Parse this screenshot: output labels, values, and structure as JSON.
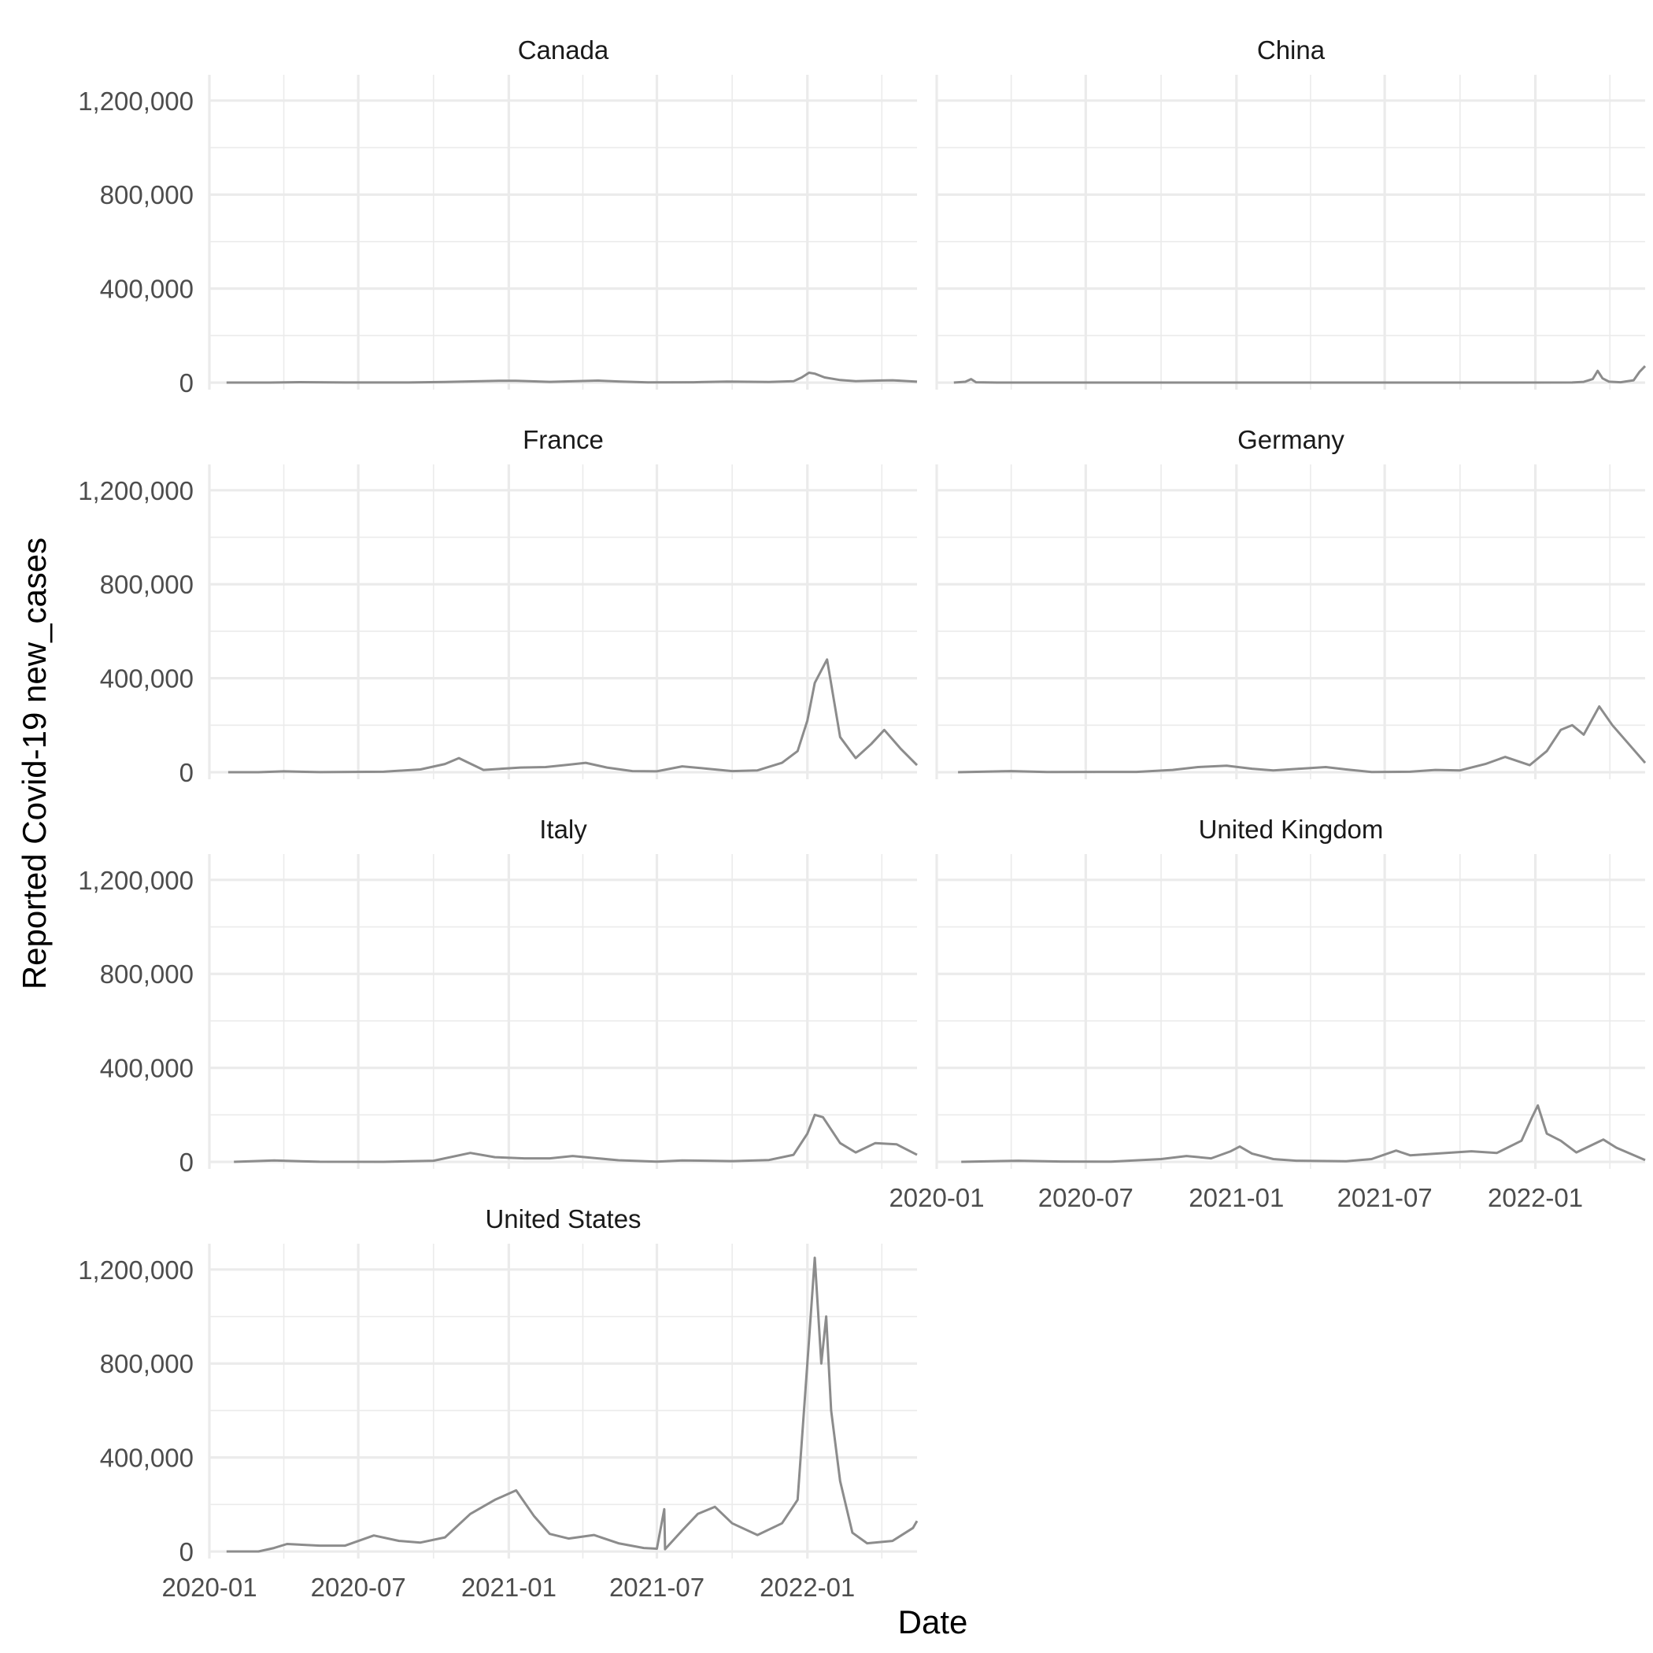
{
  "chart_data": {
    "type": "line",
    "layout": "facet_wrap",
    "ncol": 2,
    "xlabel": "Date",
    "ylabel": "Reported Covid-19 new_cases",
    "x_range": [
      "2020-01-01",
      "2022-05-15"
    ],
    "x_ticks": [
      "2020-01",
      "2020-07",
      "2021-01",
      "2021-07",
      "2022-01"
    ],
    "ylim": [
      -30000,
      1310000
    ],
    "y_ticks": [
      0,
      400000,
      800000,
      1200000
    ],
    "y_tick_labels": [
      "0",
      "400,000",
      "800,000",
      "1,200,000"
    ],
    "line_color": "#8c8c8c",
    "grid": true,
    "panels": [
      {
        "name": "Canada",
        "points": [
          [
            "2020-01-22",
            0
          ],
          [
            "2020-03-15",
            300
          ],
          [
            "2020-04-20",
            1800
          ],
          [
            "2020-06-15",
            500
          ],
          [
            "2020-09-01",
            400
          ],
          [
            "2020-10-15",
            2500
          ],
          [
            "2020-12-20",
            7500
          ],
          [
            "2021-01-10",
            8000
          ],
          [
            "2021-02-20",
            3000
          ],
          [
            "2021-04-20",
            8500
          ],
          [
            "2021-05-15",
            5000
          ],
          [
            "2021-06-20",
            800
          ],
          [
            "2021-08-15",
            1500
          ],
          [
            "2021-09-25",
            4500
          ],
          [
            "2021-11-15",
            2500
          ],
          [
            "2021-12-15",
            6000
          ],
          [
            "2021-12-25",
            22000
          ],
          [
            "2022-01-03",
            42000
          ],
          [
            "2022-01-10",
            38000
          ],
          [
            "2022-01-22",
            22000
          ],
          [
            "2022-02-10",
            11000
          ],
          [
            "2022-03-01",
            6000
          ],
          [
            "2022-04-01",
            9000
          ],
          [
            "2022-04-15",
            10000
          ],
          [
            "2022-05-15",
            4000
          ]
        ]
      },
      {
        "name": "China",
        "points": [
          [
            "2020-01-22",
            0
          ],
          [
            "2020-02-05",
            3500
          ],
          [
            "2020-02-12",
            15000
          ],
          [
            "2020-02-18",
            1500
          ],
          [
            "2020-03-15",
            200
          ],
          [
            "2020-12-01",
            100
          ],
          [
            "2021-12-01",
            200
          ],
          [
            "2022-02-15",
            500
          ],
          [
            "2022-03-01",
            3000
          ],
          [
            "2022-03-12",
            15000
          ],
          [
            "2022-03-18",
            50000
          ],
          [
            "2022-03-24",
            18000
          ],
          [
            "2022-04-01",
            4000
          ],
          [
            "2022-04-15",
            1500
          ],
          [
            "2022-05-01",
            10000
          ],
          [
            "2022-05-08",
            45000
          ],
          [
            "2022-05-15",
            70000
          ]
        ]
      },
      {
        "name": "France",
        "points": [
          [
            "2020-01-24",
            0
          ],
          [
            "2020-03-01",
            300
          ],
          [
            "2020-04-01",
            4000
          ],
          [
            "2020-05-15",
            500
          ],
          [
            "2020-08-01",
            2000
          ],
          [
            "2020-09-15",
            12000
          ],
          [
            "2020-10-15",
            35000
          ],
          [
            "2020-11-01",
            60000
          ],
          [
            "2020-11-10",
            45000
          ],
          [
            "2020-12-01",
            10000
          ],
          [
            "2021-01-15",
            20000
          ],
          [
            "2021-02-15",
            22000
          ],
          [
            "2021-03-15",
            32000
          ],
          [
            "2021-04-05",
            40000
          ],
          [
            "2021-05-01",
            20000
          ],
          [
            "2021-06-01",
            5000
          ],
          [
            "2021-07-01",
            4000
          ],
          [
            "2021-08-01",
            25000
          ],
          [
            "2021-09-01",
            15000
          ],
          [
            "2021-10-01",
            5000
          ],
          [
            "2021-11-01",
            8000
          ],
          [
            "2021-12-01",
            40000
          ],
          [
            "2021-12-20",
            90000
          ],
          [
            "2022-01-01",
            220000
          ],
          [
            "2022-01-10",
            380000
          ],
          [
            "2022-01-25",
            480000
          ],
          [
            "2022-02-10",
            150000
          ],
          [
            "2022-03-01",
            60000
          ],
          [
            "2022-03-20",
            120000
          ],
          [
            "2022-04-05",
            180000
          ],
          [
            "2022-04-25",
            100000
          ],
          [
            "2022-05-15",
            30000
          ]
        ]
      },
      {
        "name": "Germany",
        "points": [
          [
            "2020-01-27",
            0
          ],
          [
            "2020-04-01",
            5000
          ],
          [
            "2020-05-15",
            700
          ],
          [
            "2020-09-01",
            1500
          ],
          [
            "2020-10-15",
            10000
          ],
          [
            "2020-11-15",
            22000
          ],
          [
            "2020-12-20",
            28000
          ],
          [
            "2021-01-20",
            15000
          ],
          [
            "2021-02-15",
            8000
          ],
          [
            "2021-04-20",
            22000
          ],
          [
            "2021-05-15",
            12000
          ],
          [
            "2021-06-15",
            1000
          ],
          [
            "2021-08-01",
            2000
          ],
          [
            "2021-09-01",
            10000
          ],
          [
            "2021-10-01",
            8000
          ],
          [
            "2021-11-01",
            35000
          ],
          [
            "2021-11-25",
            65000
          ],
          [
            "2021-12-25",
            30000
          ],
          [
            "2022-01-15",
            90000
          ],
          [
            "2022-02-01",
            180000
          ],
          [
            "2022-02-15",
            200000
          ],
          [
            "2022-03-01",
            160000
          ],
          [
            "2022-03-20",
            280000
          ],
          [
            "2022-04-05",
            200000
          ],
          [
            "2022-04-25",
            120000
          ],
          [
            "2022-05-15",
            40000
          ]
        ]
      },
      {
        "name": "Italy",
        "points": [
          [
            "2020-01-31",
            0
          ],
          [
            "2020-03-20",
            6000
          ],
          [
            "2020-05-15",
            500
          ],
          [
            "2020-08-01",
            300
          ],
          [
            "2020-10-01",
            5000
          ],
          [
            "2020-11-15",
            38000
          ],
          [
            "2020-12-15",
            20000
          ],
          [
            "2021-01-20",
            15000
          ],
          [
            "2021-02-20",
            15000
          ],
          [
            "2021-03-20",
            25000
          ],
          [
            "2021-04-20",
            15000
          ],
          [
            "2021-05-15",
            7000
          ],
          [
            "2021-07-01",
            900
          ],
          [
            "2021-08-01",
            6000
          ],
          [
            "2021-09-01",
            5000
          ],
          [
            "2021-10-01",
            3000
          ],
          [
            "2021-11-15",
            8000
          ],
          [
            "2021-12-15",
            30000
          ],
          [
            "2022-01-01",
            120000
          ],
          [
            "2022-01-10",
            200000
          ],
          [
            "2022-01-20",
            190000
          ],
          [
            "2022-02-10",
            80000
          ],
          [
            "2022-03-01",
            40000
          ],
          [
            "2022-03-25",
            80000
          ],
          [
            "2022-04-20",
            75000
          ],
          [
            "2022-05-15",
            30000
          ]
        ]
      },
      {
        "name": "United Kingdom",
        "points": [
          [
            "2020-01-31",
            0
          ],
          [
            "2020-04-10",
            5000
          ],
          [
            "2020-06-01",
            1500
          ],
          [
            "2020-08-01",
            800
          ],
          [
            "2020-10-01",
            12000
          ],
          [
            "2020-11-01",
            25000
          ],
          [
            "2020-12-01",
            15000
          ],
          [
            "2020-12-25",
            45000
          ],
          [
            "2021-01-05",
            65000
          ],
          [
            "2021-01-20",
            35000
          ],
          [
            "2021-02-15",
            12000
          ],
          [
            "2021-03-15",
            5000
          ],
          [
            "2021-05-15",
            2500
          ],
          [
            "2021-06-15",
            12000
          ],
          [
            "2021-07-15",
            48000
          ],
          [
            "2021-08-01",
            28000
          ],
          [
            "2021-09-01",
            35000
          ],
          [
            "2021-10-15",
            45000
          ],
          [
            "2021-11-15",
            38000
          ],
          [
            "2021-12-15",
            90000
          ],
          [
            "2021-12-28",
            190000
          ],
          [
            "2022-01-04",
            240000
          ],
          [
            "2022-01-15",
            120000
          ],
          [
            "2022-02-01",
            90000
          ],
          [
            "2022-02-20",
            40000
          ],
          [
            "2022-03-25",
            95000
          ],
          [
            "2022-04-10",
            60000
          ],
          [
            "2022-05-15",
            8000
          ]
        ]
      },
      {
        "name": "United States",
        "points": [
          [
            "2020-01-22",
            0
          ],
          [
            "2020-03-01",
            100
          ],
          [
            "2020-03-20",
            15000
          ],
          [
            "2020-04-05",
            32000
          ],
          [
            "2020-05-15",
            25000
          ],
          [
            "2020-06-15",
            25000
          ],
          [
            "2020-07-20",
            68000
          ],
          [
            "2020-08-20",
            45000
          ],
          [
            "2020-09-15",
            38000
          ],
          [
            "2020-10-15",
            60000
          ],
          [
            "2020-11-15",
            160000
          ],
          [
            "2020-12-15",
            220000
          ],
          [
            "2021-01-10",
            260000
          ],
          [
            "2021-02-01",
            150000
          ],
          [
            "2021-02-20",
            75000
          ],
          [
            "2021-03-15",
            55000
          ],
          [
            "2021-04-15",
            70000
          ],
          [
            "2021-05-15",
            35000
          ],
          [
            "2021-06-15",
            15000
          ],
          [
            "2021-07-01",
            12000
          ],
          [
            "2021-07-10",
            180000
          ],
          [
            "2021-07-11",
            10000
          ],
          [
            "2021-08-01",
            90000
          ],
          [
            "2021-08-20",
            160000
          ],
          [
            "2021-09-10",
            190000
          ],
          [
            "2021-10-01",
            120000
          ],
          [
            "2021-11-01",
            70000
          ],
          [
            "2021-12-01",
            120000
          ],
          [
            "2021-12-20",
            220000
          ],
          [
            "2022-01-03",
            900000
          ],
          [
            "2022-01-10",
            1250000
          ],
          [
            "2022-01-18",
            800000
          ],
          [
            "2022-01-24",
            1000000
          ],
          [
            "2022-01-30",
            600000
          ],
          [
            "2022-02-10",
            300000
          ],
          [
            "2022-02-25",
            80000
          ],
          [
            "2022-03-15",
            35000
          ],
          [
            "2022-04-15",
            45000
          ],
          [
            "2022-05-10",
            100000
          ],
          [
            "2022-05-15",
            130000
          ]
        ]
      }
    ]
  }
}
